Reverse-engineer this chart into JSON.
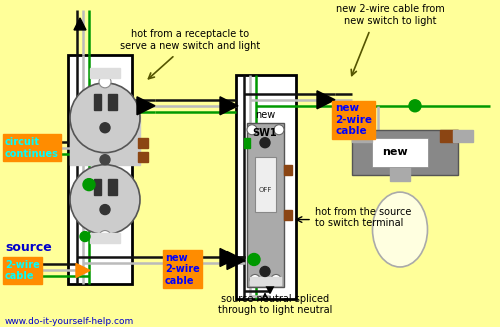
{
  "bg_color": "#FFFF99",
  "orange_color": "#FF8C00",
  "blue_color": "#0000CC",
  "green_wire": "#009900",
  "black_wire": "#111111",
  "white_wire": "#BBBBBB",
  "gray_wire": "#999999",
  "brown_terminal": "#8B4513",
  "outlet_gray": "#AAAAAA",
  "switch_gray": "#999999",
  "light_gray": "#888888",
  "website": "www.do-it-yourself-help.com",
  "text_top": "hot from a receptacle to\nserve a new switch and light",
  "text_top_right": "new 2-wire cable from\nnew switch to light",
  "text_source_neutral": "source neutral spliced\nthrough to light neutral",
  "text_hot_source": "hot from the source\nto switch terminal"
}
